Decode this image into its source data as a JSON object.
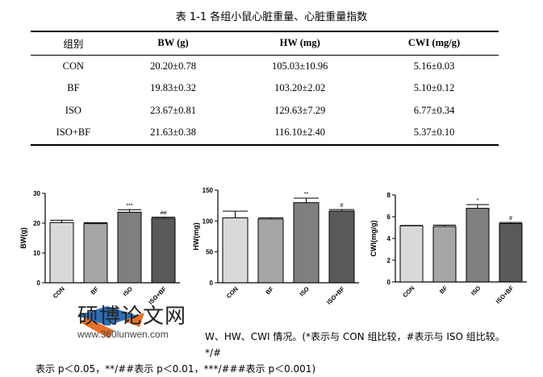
{
  "table": {
    "title": "表 1-1  各组小鼠心脏重量、心脏重量指数",
    "headers": [
      "组别",
      "BW (g)",
      "HW (mg)",
      "CWI (mg/g)"
    ],
    "rows": [
      [
        "CON",
        "20.20±0.78",
        "105.03±10.96",
        "5.16±0.03"
      ],
      [
        "BF",
        "19.83±0.32",
        "103.20±2.02",
        "5.10±0.12"
      ],
      [
        "ISO",
        "23.67±0.81",
        "129.63±7.29",
        "6.77±0.34"
      ],
      [
        "ISO+BF",
        "21.63±0.38",
        "116.10±2.40",
        "5.37±0.10"
      ]
    ]
  },
  "chart_data": [
    {
      "type": "bar",
      "ylabel": "BW(g)",
      "categories": [
        "CON",
        "BF",
        "ISO",
        "ISO+BF"
      ],
      "values": [
        20.2,
        19.83,
        23.67,
        21.63
      ],
      "errors": [
        0.78,
        0.32,
        0.81,
        0.38
      ],
      "annotations": [
        "",
        "",
        "***",
        "##"
      ],
      "ylim": [
        0,
        30
      ],
      "yticks": [
        0,
        10,
        20,
        30
      ],
      "colors": [
        "#d9d9d9",
        "#a6a6a6",
        "#7f7f7f",
        "#595959"
      ]
    },
    {
      "type": "bar",
      "ylabel": "HW(mg)",
      "categories": [
        "CON",
        "BF",
        "ISO",
        "ISO+BF"
      ],
      "values": [
        105.03,
        103.2,
        129.63,
        116.1
      ],
      "errors": [
        10.96,
        2.02,
        7.29,
        2.4
      ],
      "annotations": [
        "",
        "",
        "**",
        "#"
      ],
      "ylim": [
        0,
        150
      ],
      "yticks": [
        0,
        50,
        100,
        150
      ],
      "colors": [
        "#d9d9d9",
        "#a6a6a6",
        "#7f7f7f",
        "#595959"
      ]
    },
    {
      "type": "bar",
      "ylabel": "CWI(mg/g)",
      "categories": [
        "CON",
        "BF",
        "ISO",
        "ISO+BF"
      ],
      "values": [
        5.16,
        5.1,
        6.77,
        5.37
      ],
      "errors": [
        0.03,
        0.12,
        0.34,
        0.1
      ],
      "annotations": [
        "",
        "",
        "*",
        "#"
      ],
      "ylim": [
        0,
        8
      ],
      "yticks": [
        0,
        2,
        4,
        6,
        8
      ],
      "colors": [
        "#d9d9d9",
        "#a6a6a6",
        "#7f7f7f",
        "#595959"
      ]
    }
  ],
  "caption": {
    "line1": "W、HW、CWI 情况。(*表示与 CON 组比较，#表示与 ISO 组比较。*/#",
    "line2": "表示 p＜0.05，**/##表示 p＜0.01，***/###表示 p＜0.001)"
  },
  "watermark": {
    "text": "硕博论文网",
    "url": "www.360lunwen.com",
    "colors": {
      "orange": "#e8702a",
      "blue": "#2f6db5"
    }
  }
}
